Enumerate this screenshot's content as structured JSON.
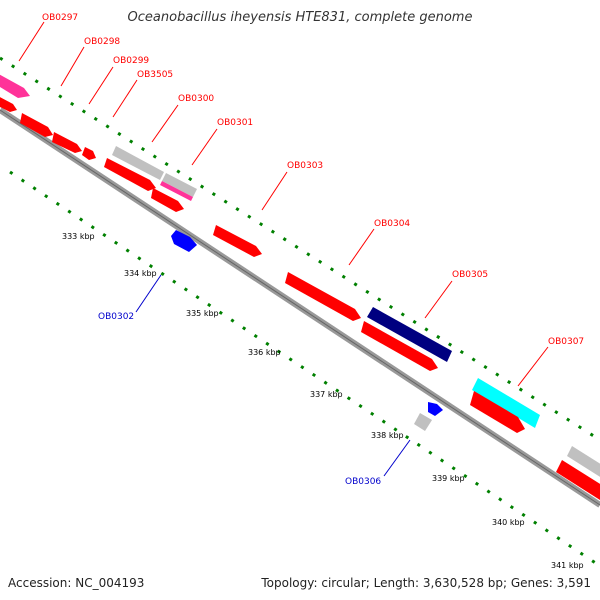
{
  "title": "Oceanobacillus iheyensis HTE831, complete genome",
  "footer": {
    "accession": "Accession: NC_004193",
    "stats": "Topology: circular; Length: 3,630,528 bp; Genes: 3,591"
  },
  "colors": {
    "forward_gene": "#ff0000",
    "reverse_gene": "#0000ff",
    "pseudo_gene": "#c0c0c0",
    "rna_gene": "#ff3399",
    "dark_gene": "#000080",
    "cyan_gene": "#00ffff",
    "backbone": "#888888",
    "tick": "#008000"
  },
  "scale": {
    "ticks": [
      "333 kbp",
      "334 kbp",
      "335 kbp",
      "336 kbp",
      "337 kbp",
      "338 kbp",
      "339 kbp",
      "340 kbp",
      "341 kbp"
    ]
  },
  "gene_labels_top": [
    "OB0297",
    "OB0298",
    "OB0299",
    "OB3505",
    "OB0300",
    "OB0301",
    "OB0303",
    "OB0304",
    "OB0305",
    "OB0307"
  ],
  "gene_labels_bottom": [
    "OB0302",
    "OB0306"
  ]
}
